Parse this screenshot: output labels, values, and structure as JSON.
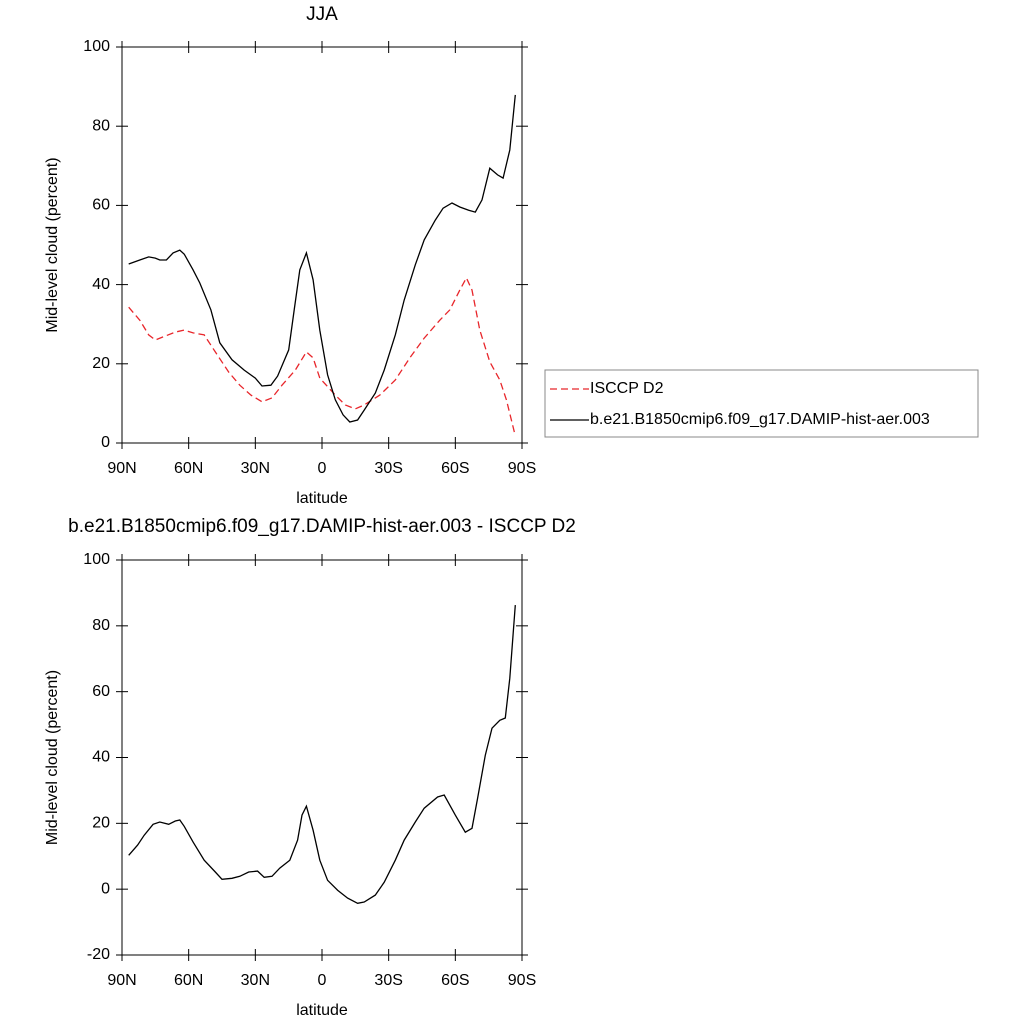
{
  "chart_data": [
    {
      "type": "line",
      "title": "JJA",
      "xlabel": "latitude",
      "ylabel": "Mid-level cloud (percent)",
      "xlim": [
        90,
        -90
      ],
      "xticks": [
        {
          "value": 90,
          "label": "90N"
        },
        {
          "value": 60,
          "label": "60N"
        },
        {
          "value": 30,
          "label": "30N"
        },
        0,
        {
          "value": -30,
          "label": "30S"
        },
        {
          "value": -60,
          "label": "60S"
        },
        {
          "value": -90,
          "label": "90S"
        }
      ],
      "ylim": [
        0,
        100
      ],
      "yticks": [
        0,
        20,
        40,
        60,
        80,
        100
      ],
      "legend": "right",
      "series": [
        {
          "name": "ISCCP D2",
          "color": "#e8262b",
          "dashed": true,
          "x": [
            87,
            82,
            78,
            75,
            71.5,
            66,
            62,
            58,
            53,
            48,
            42,
            37,
            32,
            27,
            22.5,
            18,
            12,
            7,
            4,
            1,
            -6,
            -10.5,
            -15,
            -19,
            -26,
            -33,
            -39.5,
            -46,
            -53,
            -57.5,
            -62,
            -65,
            -67.5,
            -71,
            -75.5,
            -80,
            -83,
            -87
          ],
          "values": [
            34.3,
            31,
            27.3,
            26,
            26.8,
            28,
            28.5,
            27.8,
            27.3,
            23,
            17.9,
            14.6,
            12.1,
            10.4,
            11.4,
            14.6,
            18.4,
            23,
            21.5,
            16.4,
            12.1,
            9.6,
            8.6,
            9.6,
            12.1,
            15.9,
            21.5,
            26.5,
            31,
            33.6,
            38.6,
            41.7,
            38.6,
            28.5,
            20.5,
            15.9,
            10.9,
            1.8
          ]
        },
        {
          "name": "b.e21.B1850cmip6.f09_g17.DAMIP-hist-aer.003",
          "color": "#000000",
          "dashed": false,
          "x": [
            87,
            82,
            78,
            75,
            73,
            70,
            67,
            64,
            62,
            58,
            55,
            50,
            46,
            40.5,
            35,
            30,
            27,
            23,
            20,
            15,
            12.5,
            10,
            7,
            4,
            1,
            -2.5,
            -6,
            -9.5,
            -12.5,
            -16,
            -19,
            -24,
            -28,
            -33,
            -37,
            -42,
            -46,
            -51,
            -54.5,
            -58.5,
            -62,
            -66,
            -69,
            -72,
            -75.5,
            -79,
            -81.5,
            -84.5,
            -87
          ],
          "values": [
            45.2,
            46.2,
            47,
            46.7,
            46.2,
            46.2,
            48,
            48.7,
            47.7,
            43.7,
            40.4,
            33.6,
            25.3,
            21,
            18.4,
            16.4,
            14.4,
            14.6,
            16.9,
            23.5,
            33.6,
            43.7,
            48,
            41.2,
            28.5,
            17.2,
            10.9,
            7.1,
            5.3,
            5.8,
            8.3,
            12.6,
            18.4,
            27.3,
            36.1,
            45,
            51.3,
            56.3,
            59.3,
            60.6,
            59.6,
            58.8,
            58.3,
            61.4,
            69.4,
            67.7,
            66.9,
            74,
            87.9
          ]
        }
      ]
    },
    {
      "type": "line",
      "title": "b.e21.B1850cmip6.f09_g17.DAMIP-hist-aer.003 - ISCCP D2",
      "xlabel": "latitude",
      "ylabel": "Mid-level cloud (percent)",
      "xlim": [
        90,
        -90
      ],
      "xticks": [
        {
          "value": 90,
          "label": "90N"
        },
        {
          "value": 60,
          "label": "60N"
        },
        {
          "value": 30,
          "label": "30N"
        },
        0,
        {
          "value": -30,
          "label": "30S"
        },
        {
          "value": -60,
          "label": "60S"
        },
        {
          "value": -90,
          "label": "90S"
        }
      ],
      "ylim": [
        -20,
        100
      ],
      "yticks": [
        -20,
        0,
        20,
        40,
        60,
        80,
        100
      ],
      "series": [
        {
          "color": "#000000",
          "dashed": false,
          "x": [
            87,
            83,
            80,
            76,
            73,
            69,
            66,
            64,
            62,
            58,
            53,
            48,
            45,
            40.5,
            37,
            33,
            29,
            26,
            22.5,
            19,
            14.5,
            11,
            9,
            7,
            4,
            1,
            -2.5,
            -7,
            -11.5,
            -16,
            -19,
            -24,
            -28,
            -33,
            -37,
            -42,
            -46,
            -52,
            -55,
            -60,
            -64.5,
            -67.5,
            -70,
            -73.5,
            -76.5,
            -80,
            -82.5,
            -84.5,
            -87
          ],
          "values": [
            10.3,
            13.4,
            16.4,
            19.7,
            20.4,
            19.7,
            20.7,
            21,
            19.1,
            14.3,
            8.8,
            5.2,
            3,
            3.3,
            3.9,
            5.2,
            5.5,
            3.6,
            3.9,
            6.4,
            8.8,
            14.9,
            22.5,
            25.2,
            17.9,
            8.8,
            2.7,
            -0.3,
            -2.7,
            -4.3,
            -3.9,
            -1.8,
            2.1,
            8.8,
            14.9,
            20.4,
            24.6,
            28,
            28.6,
            22.5,
            17.3,
            18.5,
            27.6,
            40.7,
            48.9,
            51.3,
            52,
            64.1,
            86.3
          ]
        }
      ]
    }
  ]
}
